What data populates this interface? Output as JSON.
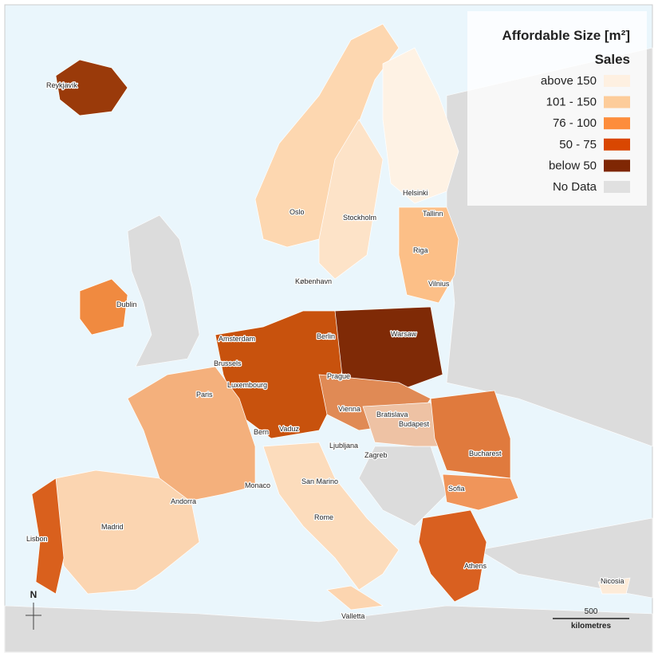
{
  "legend": {
    "title": "Affordable Size [m²]",
    "subtitle": "Sales",
    "items": [
      {
        "label": "above 150",
        "color": "#fef0e1"
      },
      {
        "label": "101 - 150",
        "color": "#fdcc9a"
      },
      {
        "label": "76 - 100",
        "color": "#fd8d3c"
      },
      {
        "label": "50 - 75",
        "color": "#d94701"
      },
      {
        "label": "below 50",
        "color": "#7f2704"
      },
      {
        "label": "No Data",
        "color": "#e0e0e0"
      }
    ]
  },
  "cities": [
    "Reykjavík",
    "Oslo",
    "Stockholm",
    "Helsinki",
    "Tallinn",
    "Riga",
    "Vilnius",
    "København",
    "Dublin",
    "Amsterdam",
    "Berlin",
    "Warsaw",
    "Brussels",
    "Luxembourg",
    "Prague",
    "Paris",
    "Vienna",
    "Bratislava",
    "Budapest",
    "Vaduz",
    "Bern",
    "Ljubljana",
    "Zagreb",
    "Bucharest",
    "Monaco",
    "San Marino",
    "Andorra",
    "Sofia",
    "Madrid",
    "Lisbon",
    "Rome",
    "Athens",
    "Nicosia",
    "Valletta"
  ],
  "north_label": "N",
  "scale_bar": {
    "value": "500",
    "unit": "kilometres"
  }
}
